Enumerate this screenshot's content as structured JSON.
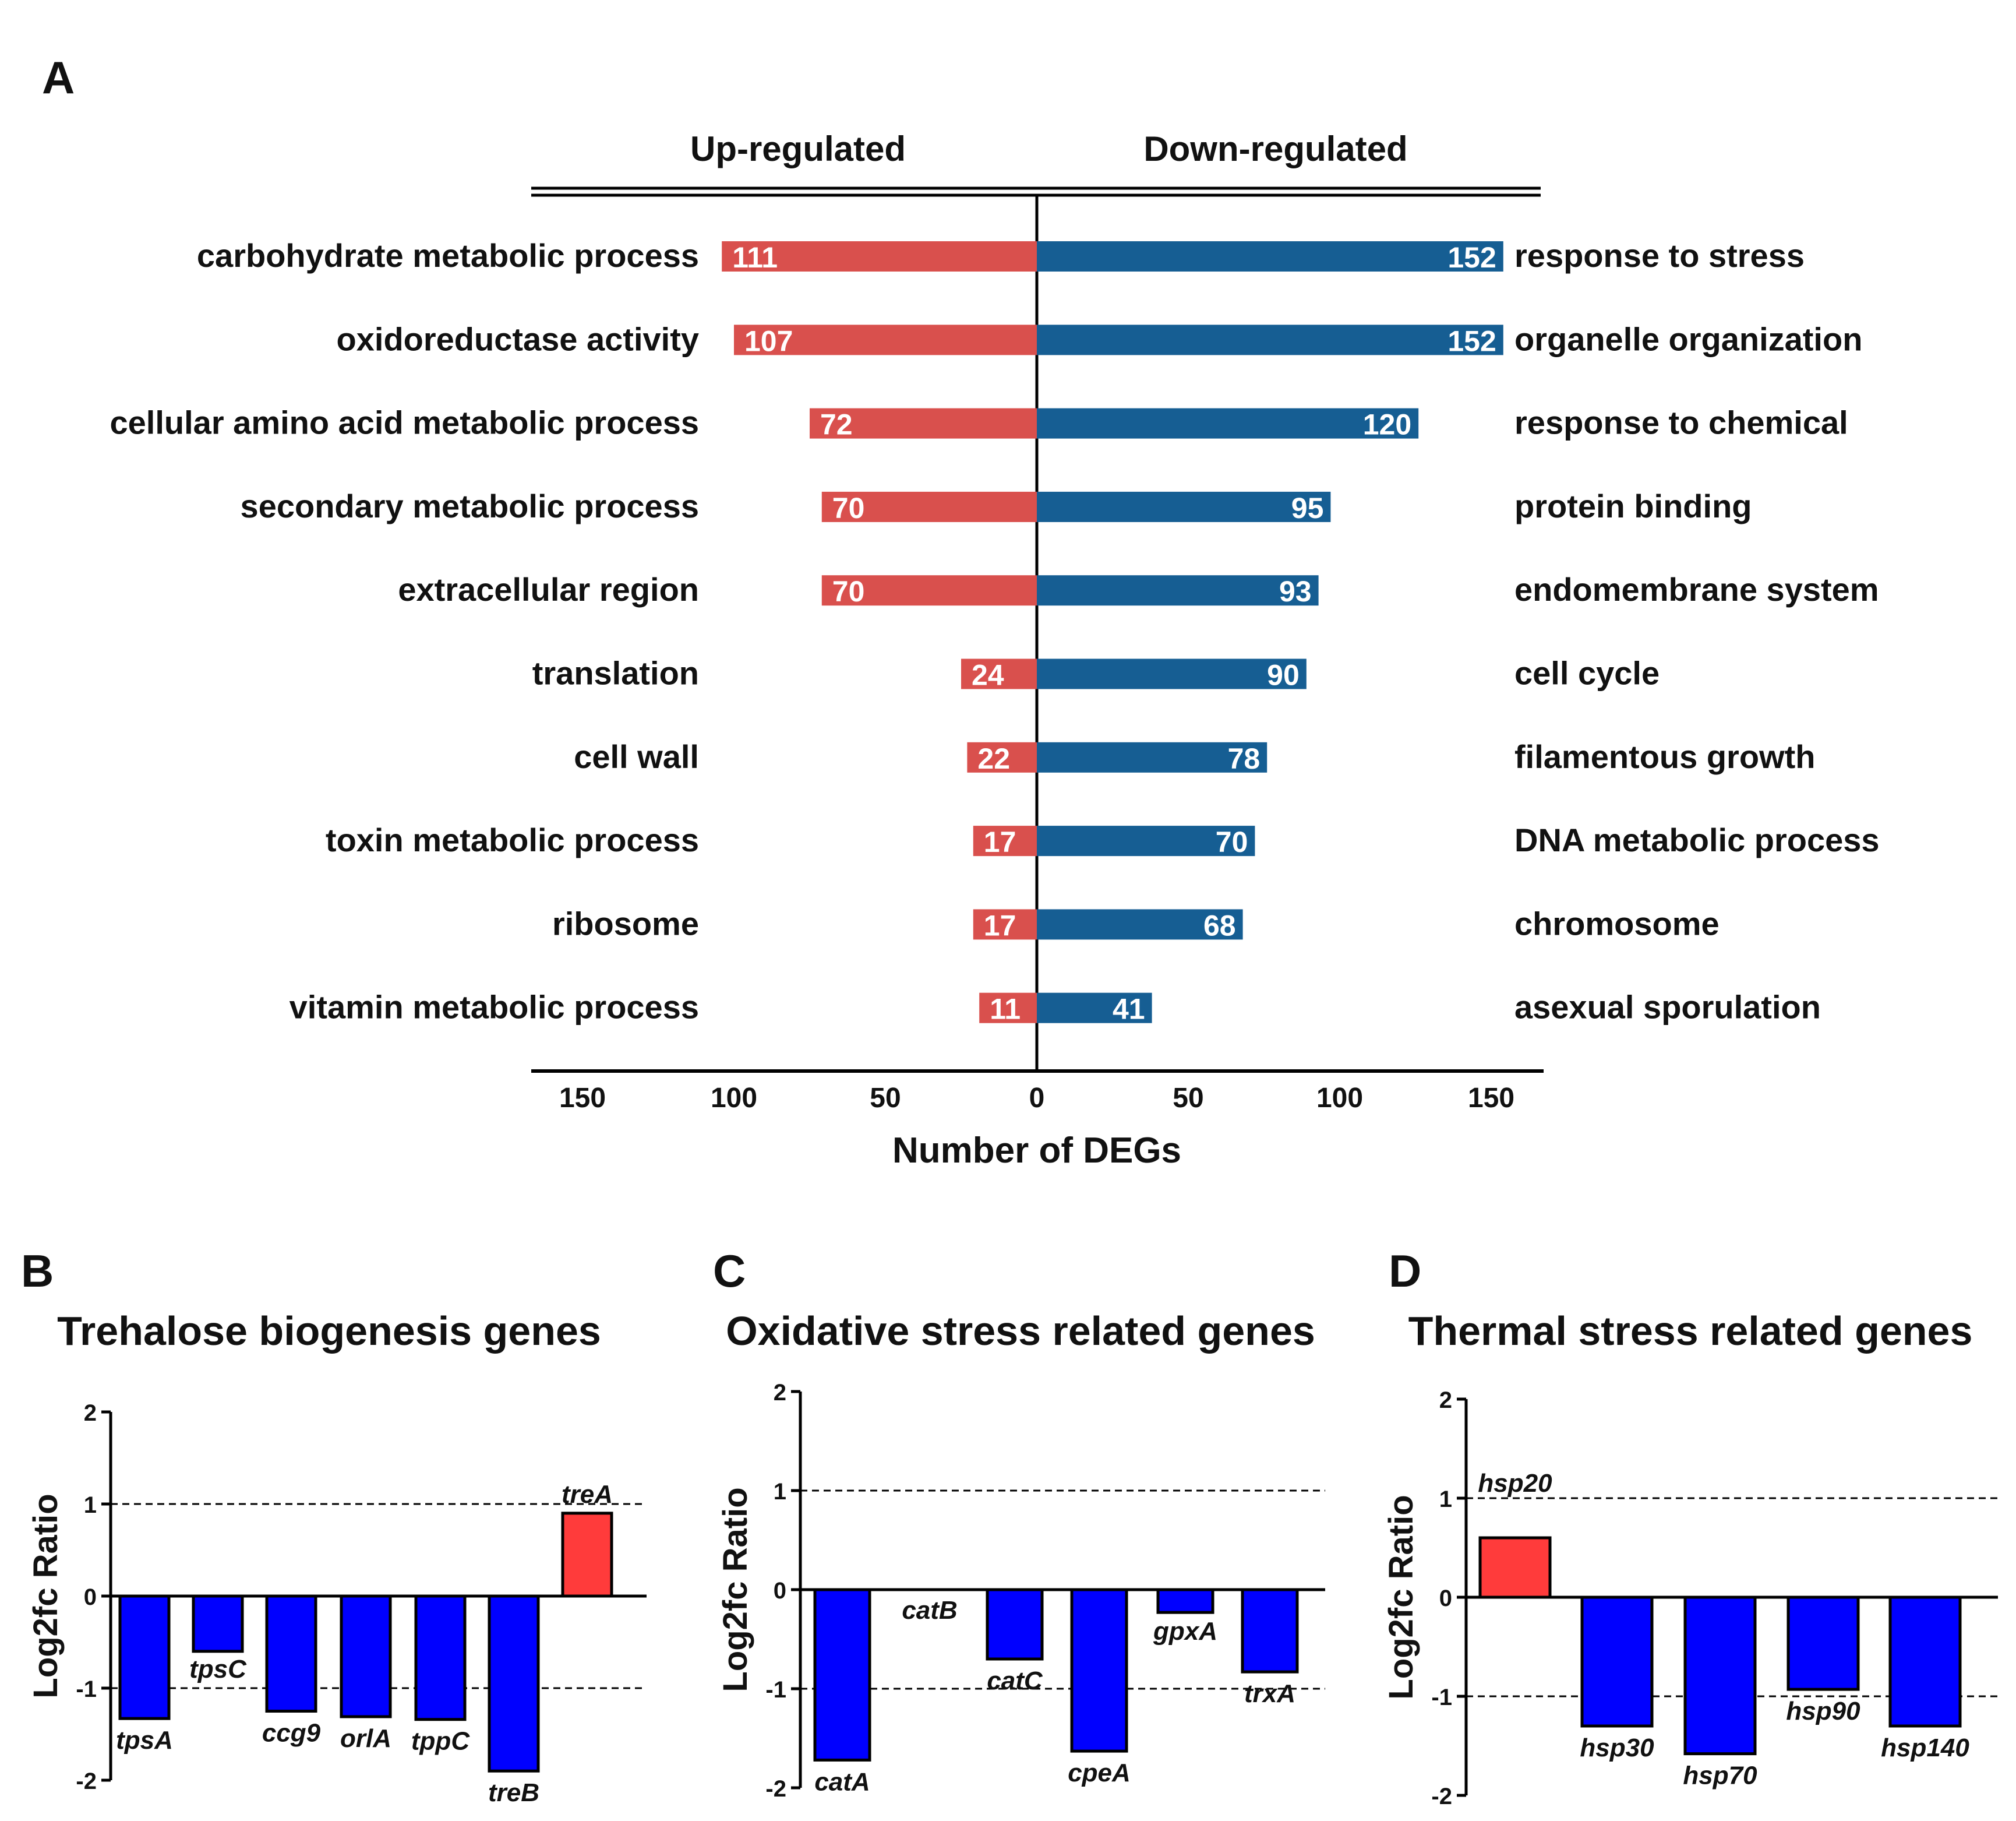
{
  "panels": {
    "A": "A",
    "B": "B",
    "C": "C",
    "D": "D"
  },
  "colors": {
    "up": "#D9504D",
    "down": "#165E93",
    "neg": "#0000FF",
    "pos": "#FF3B3B"
  },
  "chart_data": [
    {
      "panel": "A",
      "type": "bar",
      "orientation": "horizontal-diverging",
      "title": "",
      "xlabel": "Number of DEGs",
      "ylabel": "",
      "xlim": [
        -155,
        155
      ],
      "xticks": [
        "150",
        "100",
        "50",
        "0",
        "50",
        "100",
        "150"
      ],
      "xtick_values": [
        -150,
        -100,
        -50,
        0,
        50,
        100,
        150
      ],
      "headers": {
        "up": "Up-regulated",
        "down": "Down-regulated"
      },
      "up": {
        "categories": [
          "carbohydrate metabolic process",
          "oxidoreductase activity",
          "cellular amino acid metabolic process",
          "secondary metabolic process",
          "extracellular region",
          "translation",
          "cell wall",
          "toxin metabolic process",
          "ribosome",
          "vitamin metabolic process"
        ],
        "values": [
          111,
          107,
          72,
          70,
          70,
          24,
          22,
          17,
          17,
          11
        ],
        "lengths": [
          104,
          100,
          75,
          71,
          71,
          25,
          23,
          21,
          21,
          19
        ]
      },
      "down": {
        "categories": [
          "response to stress",
          "organelle organization",
          "response to chemical",
          "protein binding",
          "endomembrane system",
          "cell cycle",
          "filamentous growth",
          "DNA metabolic process",
          "chromosome",
          "asexual sporulation"
        ],
        "values": [
          152,
          152,
          120,
          95,
          93,
          90,
          78,
          70,
          68,
          41
        ],
        "lengths": [
          154,
          154,
          126,
          97,
          93,
          89,
          76,
          72,
          68,
          38
        ]
      }
    },
    {
      "panel": "B",
      "type": "bar",
      "title": "Trehalose biogenesis genes",
      "xlabel": "",
      "ylabel": "Log2fc Ratio",
      "ylim": [
        -2,
        2
      ],
      "yticks": [
        -2,
        -1,
        0,
        1,
        2
      ],
      "categories": [
        "tpsA",
        "tpsC",
        "ccg9",
        "orlA",
        "tppC",
        "treB",
        "treA"
      ],
      "values": [
        -1.33,
        -0.6,
        -1.25,
        -1.31,
        -1.34,
        -1.9,
        0.9
      ]
    },
    {
      "panel": "C",
      "type": "bar",
      "title": "Oxidative stress related genes",
      "xlabel": "",
      "ylabel": "Log2fc Ratio",
      "ylim": [
        -2,
        2
      ],
      "yticks": [
        -2,
        -1,
        0,
        1,
        2
      ],
      "categories": [
        "catA",
        "catB",
        "catC",
        "cpeA",
        "gpxA",
        "trxA"
      ],
      "values": [
        -1.72,
        0.0,
        -0.7,
        -1.63,
        -0.23,
        -0.83
      ]
    },
    {
      "panel": "D",
      "type": "bar",
      "title": "Thermal stress related genes",
      "xlabel": "",
      "ylabel": "Log2fc Ratio",
      "ylim": [
        -2,
        2
      ],
      "yticks": [
        -2,
        -1,
        0,
        1,
        2
      ],
      "categories": [
        "hsp20",
        "hsp30",
        "hsp70",
        "hsp90",
        "hsp140"
      ],
      "values": [
        0.6,
        -1.3,
        -1.58,
        -0.93,
        -1.3
      ]
    }
  ]
}
